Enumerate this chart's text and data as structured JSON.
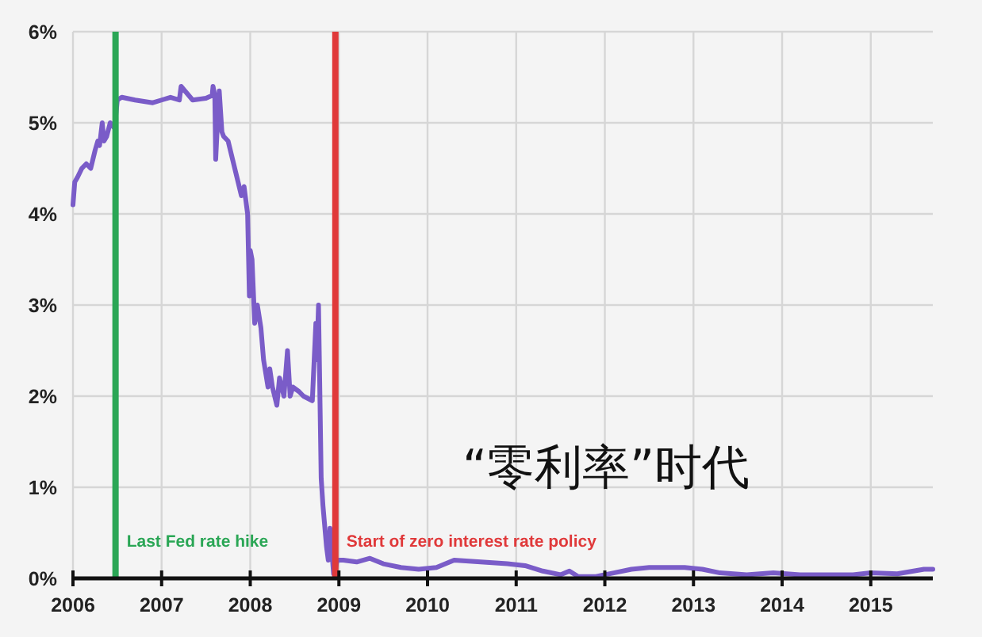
{
  "chart_data": {
    "type": "line",
    "xlim": [
      2006,
      2015.7
    ],
    "xticks": [
      2006,
      2007,
      2008,
      2009,
      2010,
      2011,
      2012,
      2013,
      2014,
      2015
    ],
    "ylim": [
      0,
      6
    ],
    "yticks": [
      {
        "value": 0,
        "label": "0%"
      },
      {
        "value": 1,
        "label": "1%"
      },
      {
        "value": 2,
        "label": "2%"
      },
      {
        "value": 3,
        "label": "3%"
      },
      {
        "value": 4,
        "label": "4%"
      },
      {
        "value": 5,
        "label": "5%"
      },
      {
        "value": 6,
        "label": "6%"
      }
    ],
    "grid": true,
    "line_style": "solid",
    "series": [
      {
        "color": "#7a5cc8",
        "x": [
          2006,
          2006.02,
          2006.05,
          2006.1,
          2006.15,
          2006.2,
          2006.25,
          2006.28,
          2006.3,
          2006.33,
          2006.35,
          2006.38,
          2006.42,
          2006.46,
          2006.48,
          2006.5,
          2006.55,
          2006.7,
          2006.9,
          2007.0,
          2007.1,
          2007.2,
          2007.22,
          2007.35,
          2007.5,
          2007.57,
          2007.58,
          2007.6,
          2007.61,
          2007.63,
          2007.65,
          2007.68,
          2007.7,
          2007.75,
          2007.8,
          2007.85,
          2007.9,
          2007.93,
          2007.97,
          2007.99,
          2008.0,
          2008.02,
          2008.05,
          2008.08,
          2008.12,
          2008.15,
          2008.2,
          2008.22,
          2008.25,
          2008.3,
          2008.33,
          2008.38,
          2008.42,
          2008.45,
          2008.48,
          2008.55,
          2008.6,
          2008.7,
          2008.74,
          2008.75,
          2008.77,
          2008.8,
          2008.82,
          2008.86,
          2008.88,
          2008.9,
          2008.92,
          2008.94,
          2008.96,
          2008.98,
          2009.05,
          2009.2,
          2009.35,
          2009.5,
          2009.7,
          2009.9,
          2010.1,
          2010.3,
          2010.6,
          2010.9,
          2011.1,
          2011.3,
          2011.5,
          2011.6,
          2011.7,
          2011.9,
          2012.1,
          2012.3,
          2012.5,
          2012.7,
          2012.9,
          2013.1,
          2013.3,
          2013.6,
          2013.9,
          2014.2,
          2014.5,
          2014.8,
          2015.0,
          2015.3,
          2015.6,
          2015.7
        ],
        "values": [
          4.1,
          4.35,
          4.4,
          4.5,
          4.55,
          4.5,
          4.7,
          4.8,
          4.75,
          5.0,
          4.8,
          4.85,
          5.0,
          4.95,
          5.05,
          5.25,
          5.28,
          5.25,
          5.22,
          5.25,
          5.28,
          5.25,
          5.4,
          5.25,
          5.27,
          5.3,
          5.4,
          5.3,
          4.6,
          5.0,
          5.35,
          4.9,
          4.85,
          4.8,
          4.6,
          4.4,
          4.2,
          4.3,
          4.0,
          3.1,
          3.6,
          3.5,
          2.8,
          3.0,
          2.75,
          2.4,
          2.1,
          2.3,
          2.1,
          1.9,
          2.2,
          2.0,
          2.5,
          2.0,
          2.1,
          2.05,
          2.0,
          1.95,
          2.8,
          2.4,
          3.0,
          1.1,
          0.8,
          0.35,
          0.2,
          0.55,
          0.3,
          0.05,
          0.1,
          0.2,
          0.2,
          0.18,
          0.22,
          0.16,
          0.12,
          0.1,
          0.12,
          0.2,
          0.18,
          0.16,
          0.14,
          0.08,
          0.04,
          0.08,
          0.02,
          0.02,
          0.06,
          0.1,
          0.12,
          0.12,
          0.12,
          0.1,
          0.06,
          0.04,
          0.06,
          0.04,
          0.04,
          0.04,
          0.06,
          0.05,
          0.1,
          0.1
        ]
      }
    ],
    "ref_lines": [
      {
        "axis": "x",
        "value": 2006.48,
        "label": "Last Fed rate hike",
        "color": "#2aa655"
      },
      {
        "axis": "x",
        "value": 2008.96,
        "label": "Start of zero interest rate policy",
        "color": "#e0393a"
      }
    ],
    "annotations": [
      "“零利率”时代"
    ]
  }
}
